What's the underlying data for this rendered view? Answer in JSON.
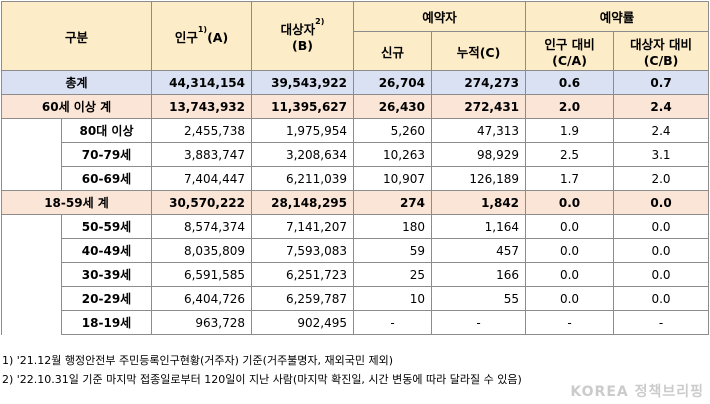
{
  "header": {
    "category": "구분",
    "population": "인구",
    "population_sup": "1)",
    "population_code": "(A)",
    "target": "대상자",
    "target_sup": "2)",
    "target_code": "(B)",
    "reservations": "예약자",
    "new": "신규",
    "cumulative": "누적(C)",
    "rate": "예약률",
    "vs_population": "인구 대비",
    "vs_population_code": "(C/A)",
    "vs_target": "대상자 대비",
    "vs_target_code": "(C/B)"
  },
  "rows": [
    {
      "label": "총계",
      "pop": "44,314,154",
      "target": "39,543,922",
      "new": "26,704",
      "cum": "274,273",
      "ra": "0.6",
      "rb": "0.7"
    },
    {
      "label": "60세 이상 계",
      "pop": "13,743,932",
      "target": "11,395,627",
      "new": "26,430",
      "cum": "272,431",
      "ra": "2.0",
      "rb": "2.4"
    },
    {
      "label": "80대 이상",
      "pop": "2,455,738",
      "target": "1,975,954",
      "new": "5,260",
      "cum": "47,313",
      "ra": "1.9",
      "rb": "2.4"
    },
    {
      "label": "70-79세",
      "pop": "3,883,747",
      "target": "3,208,634",
      "new": "10,263",
      "cum": "98,929",
      "ra": "2.5",
      "rb": "3.1"
    },
    {
      "label": "60-69세",
      "pop": "7,404,447",
      "target": "6,211,039",
      "new": "10,907",
      "cum": "126,189",
      "ra": "1.7",
      "rb": "2.0"
    },
    {
      "label": "18-59세 계",
      "pop": "30,570,222",
      "target": "28,148,295",
      "new": "274",
      "cum": "1,842",
      "ra": "0.0",
      "rb": "0.0"
    },
    {
      "label": "50-59세",
      "pop": "8,574,374",
      "target": "7,141,207",
      "new": "180",
      "cum": "1,164",
      "ra": "0.0",
      "rb": "0.0"
    },
    {
      "label": "40-49세",
      "pop": "8,035,809",
      "target": "7,593,083",
      "new": "59",
      "cum": "457",
      "ra": "0.0",
      "rb": "0.0"
    },
    {
      "label": "30-39세",
      "pop": "6,591,585",
      "target": "6,251,723",
      "new": "25",
      "cum": "166",
      "ra": "0.0",
      "rb": "0.0"
    },
    {
      "label": "20-29세",
      "pop": "6,404,726",
      "target": "6,259,787",
      "new": "10",
      "cum": "55",
      "ra": "0.0",
      "rb": "0.0"
    },
    {
      "label": "18-19세",
      "pop": "963,728",
      "target": "902,495",
      "new": "-",
      "cum": "-",
      "ra": "-",
      "rb": "-"
    }
  ],
  "notes": [
    "1) '21.12월 행정안전부 주민등록인구현황(거주자) 기준(거주불명자, 재외국민 제외)",
    "2) '22.10.31일 기준 마지막 접종일로부터 120일이 지난 사람(마지막 확진일, 시간 변동에 따라 달라질 수 있음)"
  ],
  "watermark": "KOREA 정책브리핑"
}
